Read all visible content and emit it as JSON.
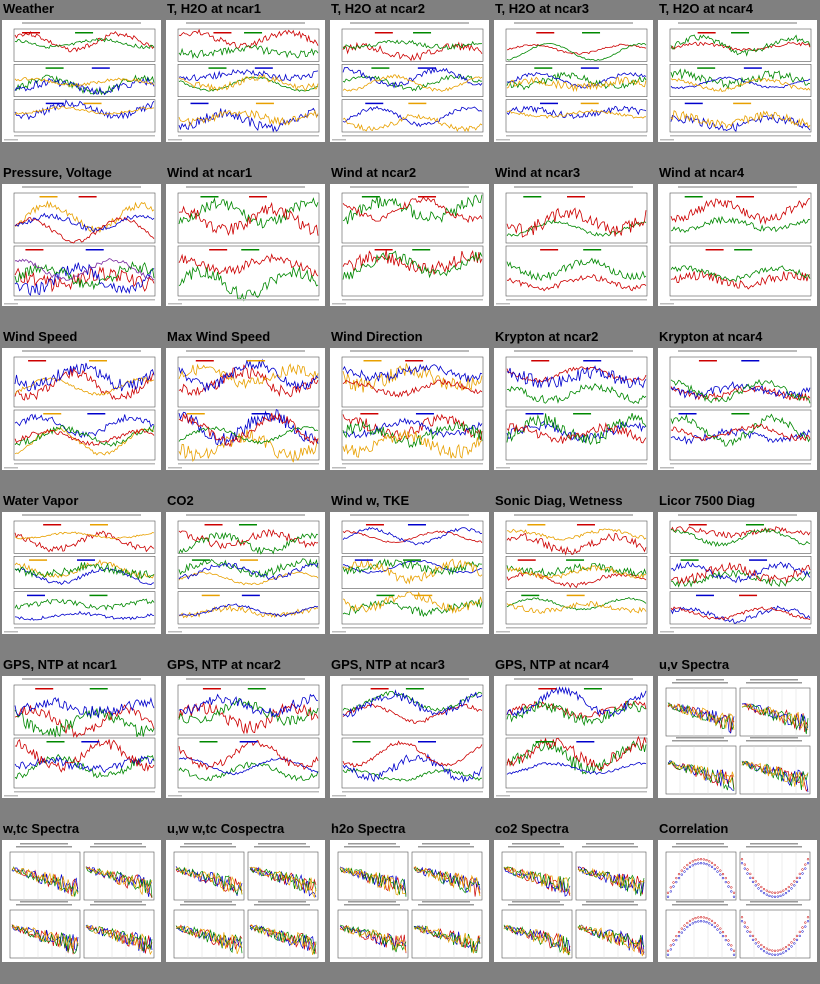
{
  "tiles": [
    {
      "title": "Weather",
      "kind": "ts",
      "panels": 3,
      "colors": [
        "#cc0000",
        "#008800",
        "#0000cc",
        "#e8a000",
        "#7a2aa0"
      ]
    },
    {
      "title": "T, H2O at ncar1",
      "kind": "ts",
      "panels": 3,
      "colors": [
        "#cc0000",
        "#008800",
        "#0000cc",
        "#e8a000"
      ]
    },
    {
      "title": "T, H2O at ncar2",
      "kind": "ts",
      "panels": 3,
      "colors": [
        "#cc0000",
        "#008800",
        "#0000cc",
        "#e8a000"
      ]
    },
    {
      "title": "T, H2O at ncar3",
      "kind": "ts",
      "panels": 3,
      "colors": [
        "#cc0000",
        "#008800",
        "#0000cc",
        "#e8a000"
      ]
    },
    {
      "title": "T, H2O at ncar4",
      "kind": "ts",
      "panels": 3,
      "colors": [
        "#cc0000",
        "#008800",
        "#0000cc",
        "#e8a000"
      ]
    },
    {
      "title": "Pressure, Voltage",
      "kind": "ts",
      "panels": 2,
      "colors": [
        "#e8a000",
        "#cc0000",
        "#0000cc",
        "#008800",
        "#7a2aa0"
      ]
    },
    {
      "title": "Wind at ncar1",
      "kind": "ts",
      "panels": 2,
      "colors": [
        "#008800",
        "#cc0000"
      ]
    },
    {
      "title": "Wind at ncar2",
      "kind": "ts",
      "panels": 2,
      "colors": [
        "#008800",
        "#cc0000"
      ]
    },
    {
      "title": "Wind at ncar3",
      "kind": "ts",
      "panels": 2,
      "colors": [
        "#008800",
        "#cc0000"
      ]
    },
    {
      "title": "Wind at ncar4",
      "kind": "ts",
      "panels": 2,
      "colors": [
        "#008800",
        "#cc0000"
      ]
    },
    {
      "title": "Wind Speed",
      "kind": "ts",
      "panels": 2,
      "colors": [
        "#cc0000",
        "#e8a000",
        "#0000cc",
        "#008800"
      ]
    },
    {
      "title": "Max Wind Speed",
      "kind": "ts",
      "panels": 2,
      "colors": [
        "#cc0000",
        "#e8a000",
        "#0000cc",
        "#008800"
      ]
    },
    {
      "title": "Wind Direction",
      "kind": "ts",
      "panels": 2,
      "colors": [
        "#e8a000",
        "#cc0000",
        "#0000cc",
        "#008800"
      ]
    },
    {
      "title": "Krypton at ncar2",
      "kind": "ts",
      "panels": 2,
      "colors": [
        "#cc0000",
        "#0000cc",
        "#008800"
      ]
    },
    {
      "title": "Krypton at ncar4",
      "kind": "ts",
      "panels": 2,
      "colors": [
        "#cc0000",
        "#0000cc",
        "#008800"
      ]
    },
    {
      "title": "Water Vapor",
      "kind": "ts",
      "panels": 3,
      "colors": [
        "#cc0000",
        "#e8a000",
        "#0000cc",
        "#008800",
        "#7a2aa0"
      ]
    },
    {
      "title": "CO2",
      "kind": "ts",
      "panels": 3,
      "colors": [
        "#cc0000",
        "#008800",
        "#e8a000",
        "#0000cc"
      ]
    },
    {
      "title": "Wind w, TKE",
      "kind": "ts",
      "panels": 3,
      "colors": [
        "#cc0000",
        "#0000cc",
        "#008800",
        "#e8a000"
      ]
    },
    {
      "title": "Sonic Diag, Wetness",
      "kind": "ts",
      "panels": 3,
      "colors": [
        "#e8a000",
        "#cc0000",
        "#008800"
      ]
    },
    {
      "title": "Licor 7500 Diag",
      "kind": "ts",
      "panels": 3,
      "colors": [
        "#cc0000",
        "#008800",
        "#0000cc"
      ]
    },
    {
      "title": "GPS, NTP at ncar1",
      "kind": "ts",
      "panels": 2,
      "colors": [
        "#cc0000",
        "#008800",
        "#0000cc"
      ]
    },
    {
      "title": "GPS, NTP at ncar2",
      "kind": "ts",
      "panels": 2,
      "colors": [
        "#cc0000",
        "#008800",
        "#0000cc"
      ]
    },
    {
      "title": "GPS, NTP at ncar3",
      "kind": "ts",
      "panels": 2,
      "colors": [
        "#cc0000",
        "#008800",
        "#0000cc"
      ]
    },
    {
      "title": "GPS, NTP at ncar4",
      "kind": "ts",
      "panels": 2,
      "colors": [
        "#cc0000",
        "#008800",
        "#0000cc"
      ]
    },
    {
      "title": "u,v Spectra",
      "kind": "spec",
      "panels": 4,
      "colors": [
        "#cc0000",
        "#0000cc",
        "#008800",
        "#e8a000",
        "#888888"
      ]
    },
    {
      "title": "w,tc Spectra",
      "kind": "spec",
      "panels": 4,
      "colors": [
        "#cc0000",
        "#0000cc",
        "#008800",
        "#e8a000",
        "#888888"
      ]
    },
    {
      "title": "u,w w,tc Cospectra",
      "kind": "spec",
      "panels": 4,
      "colors": [
        "#cc0000",
        "#0000cc",
        "#008800",
        "#e8a000",
        "#888888"
      ]
    },
    {
      "title": "h2o Spectra",
      "kind": "spec",
      "panels": 4,
      "colors": [
        "#cc0000",
        "#0000cc",
        "#008800",
        "#e8a000",
        "#888888"
      ]
    },
    {
      "title": "co2 Spectra",
      "kind": "spec",
      "panels": 4,
      "colors": [
        "#cc0000",
        "#0000cc",
        "#008800",
        "#e8a000",
        "#888888"
      ]
    },
    {
      "title": "Correlation",
      "kind": "corr",
      "panels": 4,
      "colors": [
        "#cc0000",
        "#0000cc",
        "#008800",
        "#e8a000"
      ]
    }
  ]
}
